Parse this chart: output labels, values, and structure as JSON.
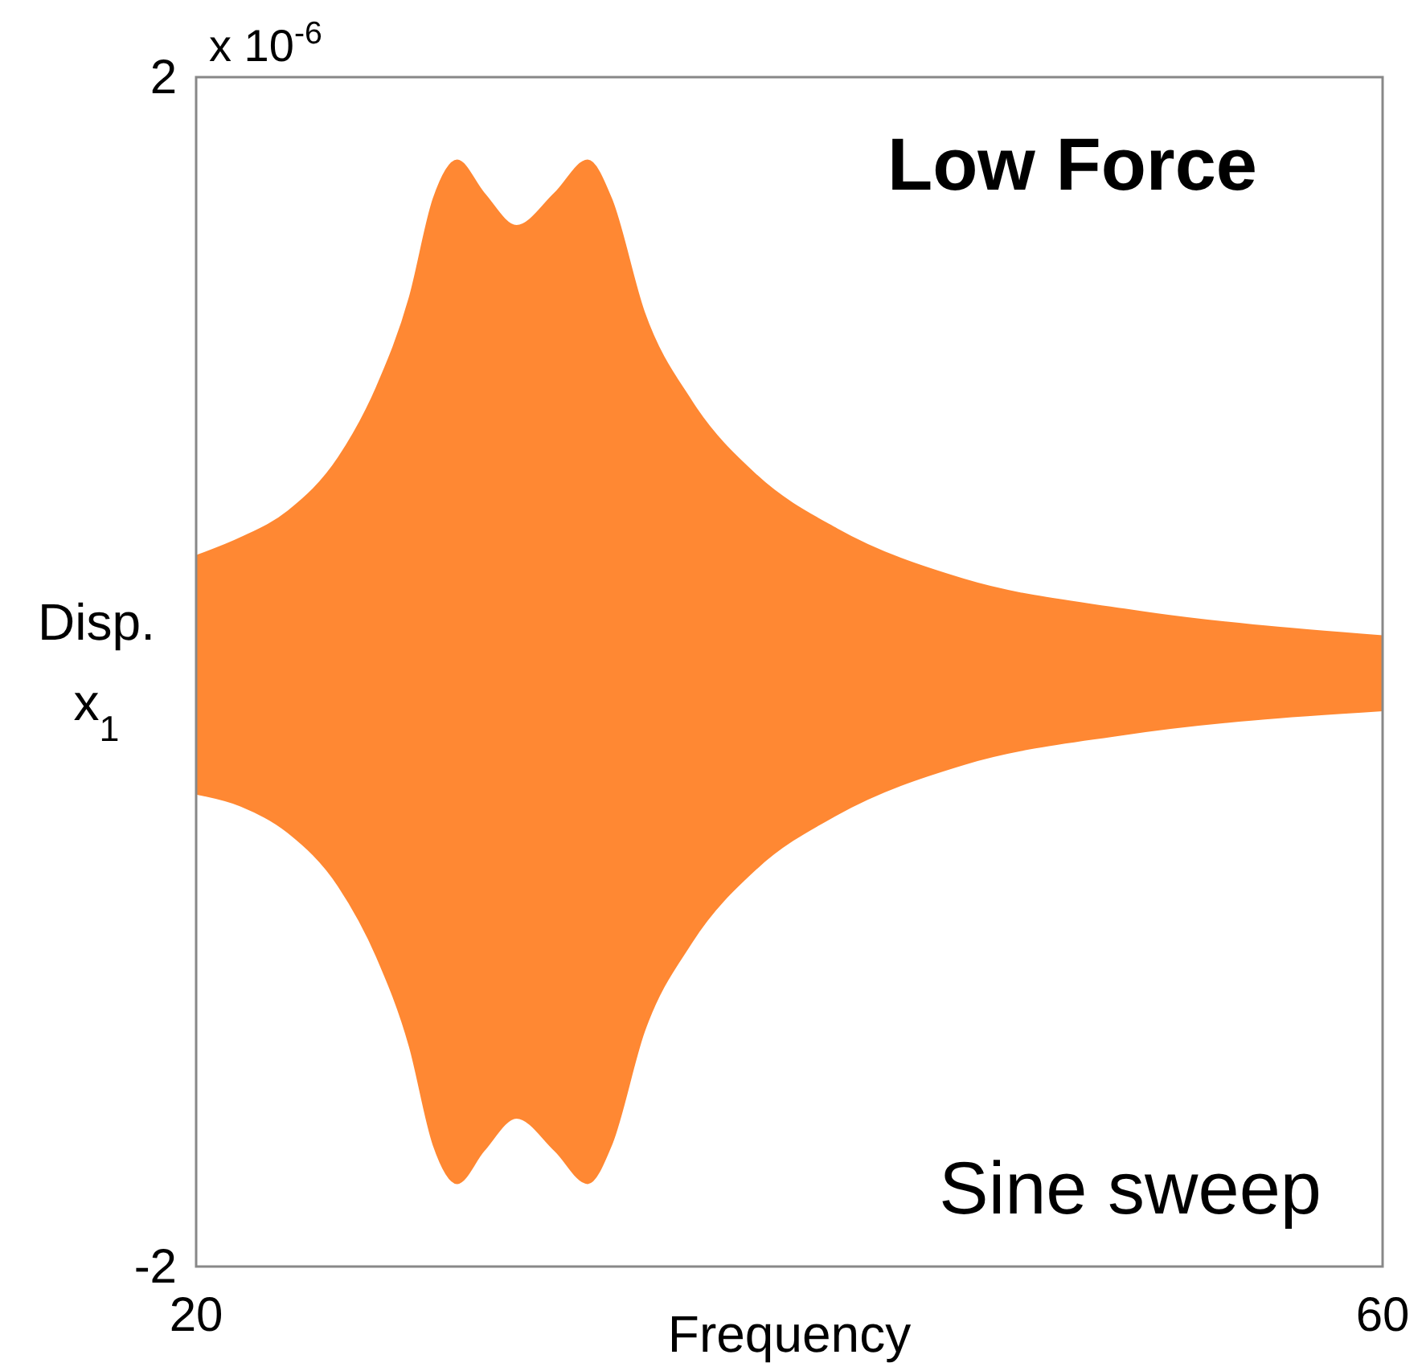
{
  "chart_data": {
    "type": "area",
    "xlabel": "Frequency",
    "ylabel": "Disp. x$_{1}$",
    "annotations": [
      "x 10$^{-6}$",
      "Low Force",
      "Sine sweep"
    ],
    "x": [
      20,
      21.5,
      23.1,
      24.8,
      26.1,
      27.2,
      28.0,
      28.8,
      29.7,
      30.8,
      32.1,
      33.2,
      34.0,
      35.1,
      36.7,
      38.9,
      41.6,
      45.9,
      51.3,
      60
    ],
    "series": [
      {
        "color": "#ff8833",
        "values": [
          0.39,
          0.45,
          0.54,
          0.72,
          0.96,
          1.26,
          1.59,
          1.72,
          1.61,
          1.5,
          1.61,
          1.72,
          1.59,
          1.21,
          0.91,
          0.66,
          0.48,
          0.31,
          0.21,
          0.12
        ]
      },
      {
        "color": "#ff8833",
        "values": [
          -0.41,
          -0.45,
          -0.54,
          -0.72,
          -0.96,
          -1.26,
          -1.59,
          -1.72,
          -1.61,
          -1.5,
          -1.61,
          -1.72,
          -1.59,
          -1.21,
          -0.91,
          -0.66,
          -0.48,
          -0.31,
          -0.21,
          -0.13
        ]
      }
    ],
    "xlim": [
      20,
      60
    ],
    "xticks": [
      20,
      60
    ],
    "ylim": [
      -2,
      2
    ],
    "yticks": [
      -2,
      2
    ]
  }
}
